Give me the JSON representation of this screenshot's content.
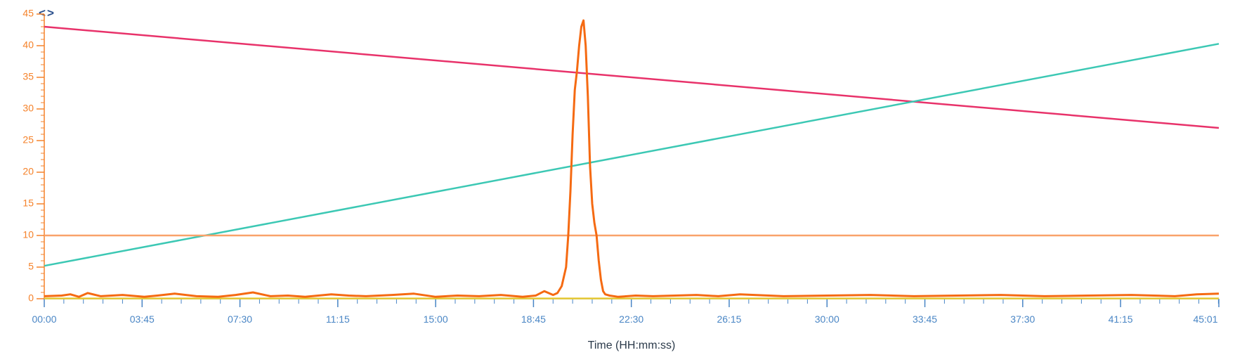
{
  "colors": {
    "y_axis": "#f5822a",
    "x_axis": "#4a86c5",
    "x_label_text": "#2b3a4a",
    "nav": "#2a4f8c"
  },
  "nav": {
    "prev_icon": "chevron-left-icon",
    "next_icon": "chevron-right-icon",
    "prev_glyph": "<",
    "next_glyph": ">"
  },
  "chart_data": {
    "type": "line",
    "title": "",
    "xlabel": "Time (HH:mm:ss)",
    "ylabel": "",
    "xlim_seconds": [
      0,
      2701
    ],
    "ylim": [
      0,
      45
    ],
    "y_ticks": [
      0,
      5,
      10,
      15,
      20,
      25,
      30,
      35,
      40,
      45
    ],
    "x_tick_labels": [
      "00:00",
      "03:45",
      "07:30",
      "11:15",
      "15:00",
      "18:45",
      "22:30",
      "26:15",
      "30:00",
      "33:45",
      "37:30",
      "41:15",
      "45:01"
    ],
    "x_tick_seconds": [
      0,
      225,
      450,
      675,
      900,
      1125,
      1350,
      1575,
      1800,
      2025,
      2250,
      2475,
      2701
    ],
    "grid": false,
    "legend": "none",
    "series": [
      {
        "color": "#e8326a",
        "x": [
          0,
          2701
        ],
        "y": [
          43.0,
          27.0
        ]
      },
      {
        "color": "#3cc8b4",
        "x": [
          0,
          2701
        ],
        "y": [
          5.2,
          40.3
        ]
      },
      {
        "color": "#f9a26a",
        "x": [
          0,
          2701
        ],
        "y": [
          10.0,
          10.0
        ]
      },
      {
        "color": "#e6c832",
        "x": [
          0,
          2701
        ],
        "y": [
          0.05,
          0.05
        ]
      },
      {
        "color": "#f56a12",
        "x": [
          0,
          40,
          60,
          80,
          100,
          130,
          180,
          230,
          260,
          300,
          350,
          400,
          440,
          480,
          520,
          560,
          600,
          660,
          700,
          740,
          800,
          850,
          900,
          950,
          1000,
          1050,
          1100,
          1130,
          1150,
          1170,
          1180,
          1190,
          1200,
          1205,
          1210,
          1215,
          1220,
          1225,
          1230,
          1235,
          1240,
          1245,
          1250,
          1255,
          1260,
          1265,
          1270,
          1275,
          1280,
          1285,
          1290,
          1300,
          1320,
          1360,
          1400,
          1500,
          1550,
          1600,
          1700,
          1800,
          1900,
          2000,
          2100,
          2200,
          2300,
          2400,
          2500,
          2600,
          2650,
          2701
        ],
        "y": [
          0.4,
          0.5,
          0.7,
          0.3,
          0.9,
          0.4,
          0.6,
          0.3,
          0.5,
          0.8,
          0.4,
          0.3,
          0.6,
          1.0,
          0.4,
          0.5,
          0.3,
          0.7,
          0.5,
          0.4,
          0.6,
          0.8,
          0.3,
          0.5,
          0.4,
          0.6,
          0.3,
          0.5,
          1.2,
          0.6,
          0.9,
          2.0,
          5.0,
          10.0,
          17.0,
          26.0,
          33.0,
          36.0,
          40.0,
          43.0,
          44.0,
          40.0,
          32.0,
          21.0,
          15.0,
          12.0,
          10.0,
          6.0,
          3.0,
          1.2,
          0.7,
          0.5,
          0.3,
          0.5,
          0.4,
          0.6,
          0.4,
          0.7,
          0.4,
          0.5,
          0.6,
          0.4,
          0.5,
          0.6,
          0.4,
          0.5,
          0.6,
          0.4,
          0.7,
          0.8
        ]
      }
    ]
  }
}
